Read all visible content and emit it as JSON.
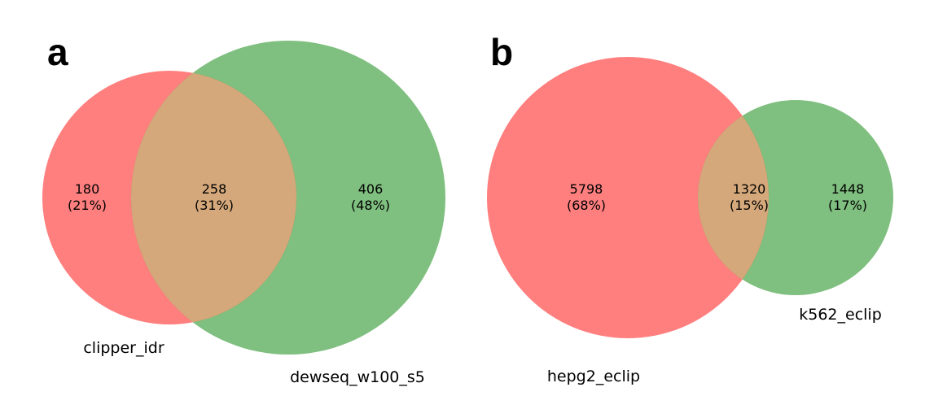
{
  "panels": [
    {
      "letter": "a",
      "sets": [
        {
          "name": "clipper_idr",
          "color": "#ff0000"
        },
        {
          "name": "dewseq_w100_s5",
          "color": "#008000"
        }
      ],
      "regions": {
        "left_only": {
          "count": "180",
          "percent": "(21%)"
        },
        "overlap": {
          "count": "258",
          "percent": "(31%)"
        },
        "right_only": {
          "count": "406",
          "percent": "(48%)"
        }
      }
    },
    {
      "letter": "b",
      "sets": [
        {
          "name": "hepg2_eclip",
          "color": "#ff0000"
        },
        {
          "name": "k562_eclip",
          "color": "#008000"
        }
      ],
      "regions": {
        "left_only": {
          "count": "5798",
          "percent": "(68%)"
        },
        "overlap": {
          "count": "1320",
          "percent": "(15%)"
        },
        "right_only": {
          "count": "1448",
          "percent": "(17%)"
        }
      }
    }
  ],
  "colors": {
    "set_a": "#ff0000",
    "set_b": "#008000",
    "overlap": "#d4a87a"
  }
}
